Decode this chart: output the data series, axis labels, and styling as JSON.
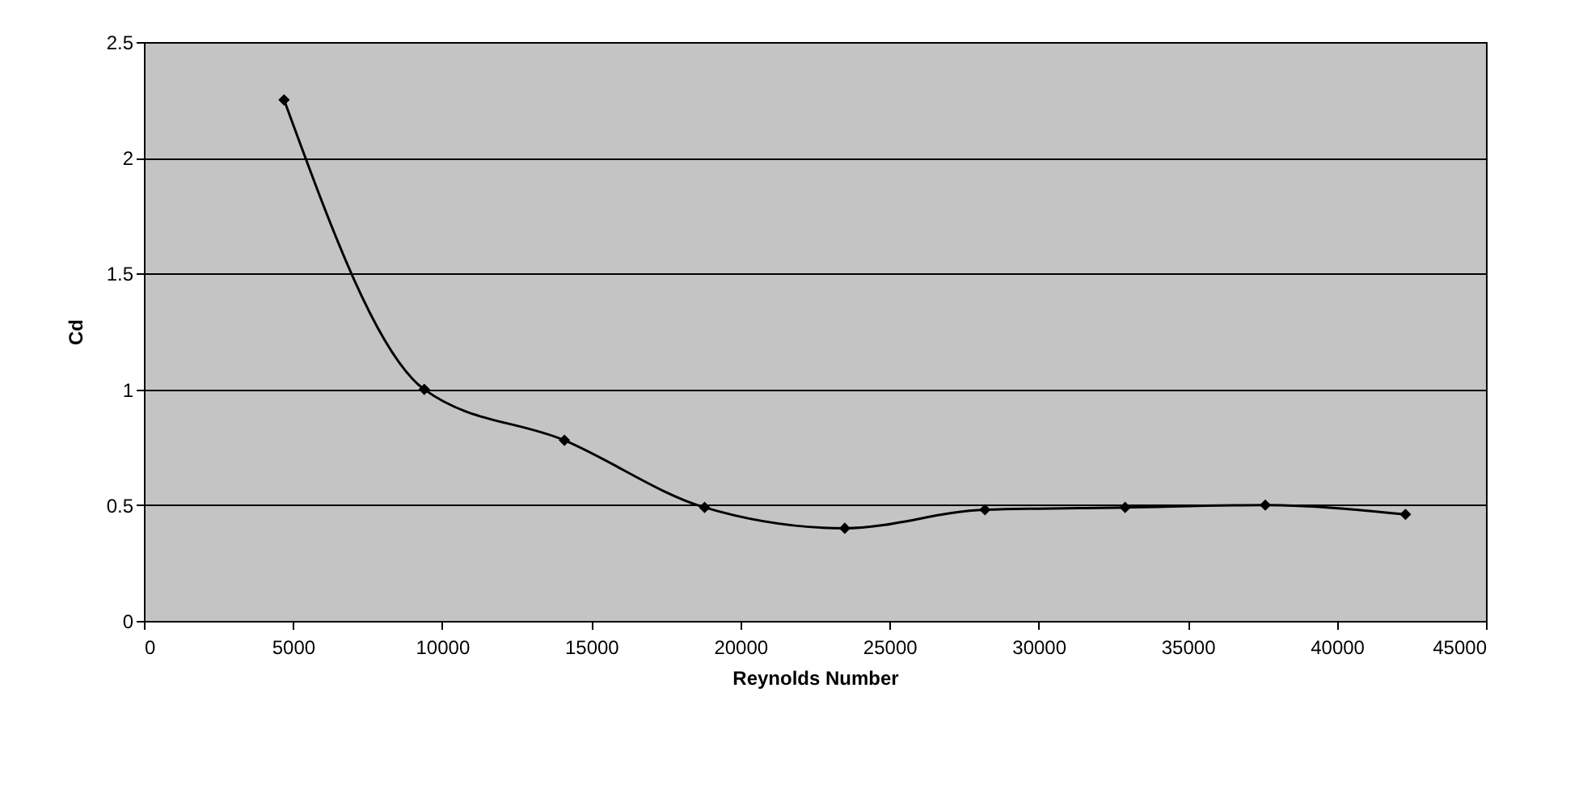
{
  "chart_data": {
    "type": "line",
    "xlabel": "Reynolds Number",
    "ylabel": "Cd",
    "x": [
      4700,
      9400,
      14100,
      18800,
      23500,
      28200,
      32900,
      37600,
      42300
    ],
    "series": [
      {
        "color": "#000000",
        "values": [
          2.25,
          1.0,
          0.78,
          0.49,
          0.4,
          0.48,
          0.49,
          0.5,
          0.46
        ]
      }
    ],
    "xlim": [
      0,
      45000
    ],
    "xticks": [
      0,
      5000,
      10000,
      15000,
      20000,
      25000,
      30000,
      35000,
      40000,
      45000
    ],
    "ylim": [
      0,
      2.5
    ],
    "yticks": [
      0,
      0.5,
      1,
      1.5,
      2,
      2.5
    ],
    "grid": "y",
    "marker": "diamond",
    "line_style": "solid"
  }
}
